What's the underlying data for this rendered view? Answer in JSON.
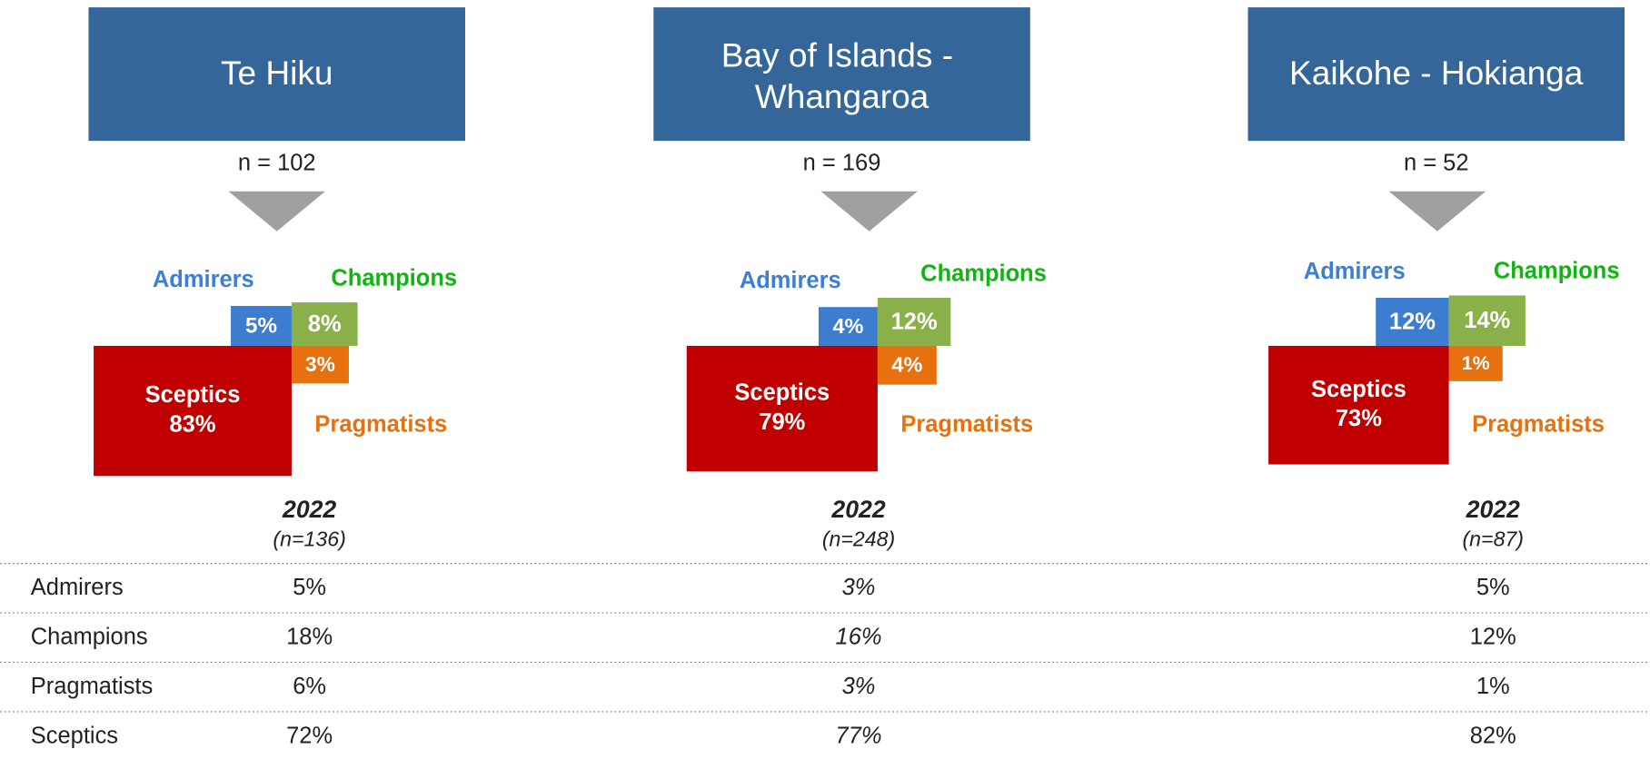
{
  "chart_data": [
    {
      "type": "segment",
      "title": "Te Hiku",
      "subtitle": "n = 102",
      "categories": [
        "Admirers",
        "Champions",
        "Pragmatists",
        "Sceptics"
      ],
      "values": [
        5,
        8,
        3,
        83
      ],
      "value_labels": [
        "5%",
        "8%",
        "3%",
        "83%"
      ],
      "colors": [
        "#3c7dd0",
        "#8ab04a",
        "#e8710f",
        "#c00000"
      ],
      "label_colors": [
        "#3d7fd4",
        "#11b511",
        "#e8710f",
        "#ffffff"
      ]
    },
    {
      "type": "segment",
      "title": "Bay of Islands - Whangaroa",
      "subtitle": "n = 169",
      "categories": [
        "Admirers",
        "Champions",
        "Pragmatists",
        "Sceptics"
      ],
      "values": [
        4,
        12,
        4,
        79
      ],
      "value_labels": [
        "4%",
        "12%",
        "4%",
        "79%"
      ],
      "colors": [
        "#3c7dd0",
        "#8ab04a",
        "#e8710f",
        "#c00000"
      ],
      "label_colors": [
        "#3d7fd4",
        "#11b511",
        "#e8710f",
        "#ffffff"
      ]
    },
    {
      "type": "segment",
      "title": "Kaikohe - Hokianga",
      "subtitle": "n = 52",
      "categories": [
        "Admirers",
        "Champions",
        "Pragmatists",
        "Sceptics"
      ],
      "values": [
        12,
        14,
        1,
        73
      ],
      "value_labels": [
        "12%",
        "14%",
        "1%",
        "73%"
      ],
      "colors": [
        "#3c7dd0",
        "#8ab04a",
        "#e8710f",
        "#c00000"
      ],
      "label_colors": [
        "#3d7fd4",
        "#11b511",
        "#e8710f",
        "#ffffff"
      ]
    }
  ],
  "table": {
    "columns": [
      {
        "year": "2022",
        "n": "(n=136)"
      },
      {
        "year": "2022",
        "n": "(n=248)"
      },
      {
        "year": "2022",
        "n": "(n=87)"
      }
    ],
    "rows": [
      {
        "label": "Admirers",
        "values": [
          "5%",
          "3%",
          "5%"
        ]
      },
      {
        "label": "Champions",
        "values": [
          "18%",
          "16%",
          "12%"
        ]
      },
      {
        "label": "Pragmatists",
        "values": [
          "6%",
          "3%",
          "1%"
        ]
      },
      {
        "label": "Sceptics",
        "values": [
          "72%",
          "77%",
          "82%"
        ]
      }
    ]
  }
}
